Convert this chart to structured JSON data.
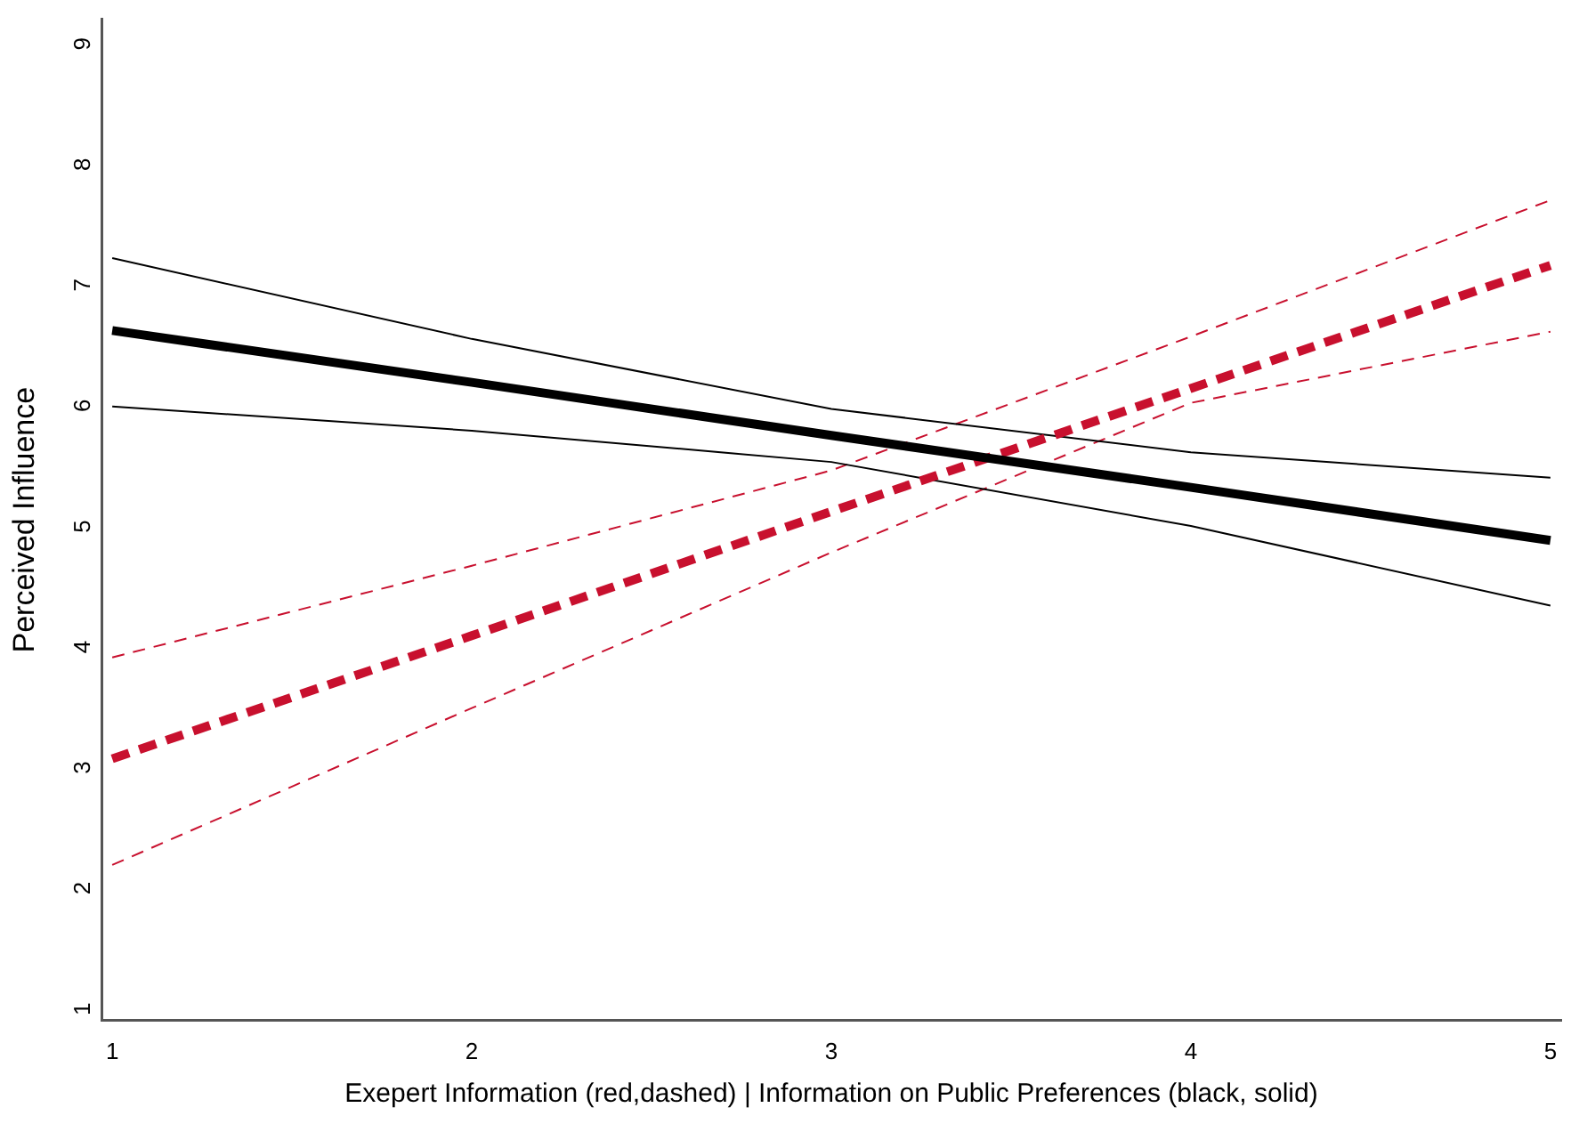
{
  "chart_data": {
    "type": "line",
    "xlabel": "Exepert Information (red,dashed) | Information on Public Preferences (black, solid)",
    "ylabel": "Perceived Influence",
    "x": [
      1,
      2,
      3,
      4,
      5
    ],
    "xlim": [
      0.97,
      5.03
    ],
    "xticks": [
      1,
      2,
      3,
      4,
      5
    ],
    "ylim": [
      0.85,
      9.15
    ],
    "yticks": [
      1,
      2,
      3,
      4,
      5,
      6,
      7,
      8,
      9
    ],
    "grid": false,
    "legend": false,
    "marker": "none",
    "series": [
      {
        "color": "#000000",
        "line_style": "solid",
        "values": [
          6.57,
          6.14,
          5.7,
          5.27,
          4.83
        ]
      },
      {
        "color": "#c8102e",
        "line_style": "dashed",
        "values": [
          3.02,
          4.04,
          5.07,
          6.09,
          7.11
        ]
      },
      {
        "color": "#000000",
        "line_style": "solid",
        "values": [
          7.17,
          6.5,
          5.92,
          5.56,
          5.35
        ]
      },
      {
        "color": "#000000",
        "line_style": "solid",
        "values": [
          5.94,
          5.74,
          5.48,
          4.95,
          4.29
        ]
      },
      {
        "color": "#c8102e",
        "line_style": "dashed",
        "values": [
          3.86,
          4.62,
          5.41,
          6.52,
          7.65
        ]
      },
      {
        "color": "#c8102e",
        "line_style": "dashed",
        "values": [
          2.14,
          3.44,
          4.73,
          5.97,
          6.56
        ]
      }
    ]
  }
}
